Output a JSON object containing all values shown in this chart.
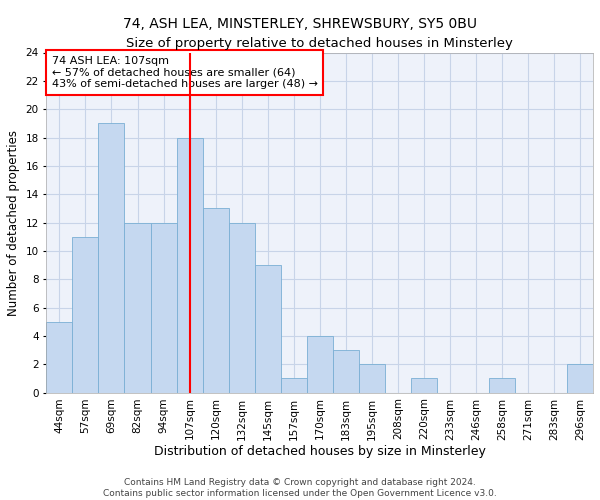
{
  "title1": "74, ASH LEA, MINSTERLEY, SHREWSBURY, SY5 0BU",
  "title2": "Size of property relative to detached houses in Minsterley",
  "xlabel": "Distribution of detached houses by size in Minsterley",
  "ylabel": "Number of detached properties",
  "categories": [
    "44sqm",
    "57sqm",
    "69sqm",
    "82sqm",
    "94sqm",
    "107sqm",
    "120sqm",
    "132sqm",
    "145sqm",
    "157sqm",
    "170sqm",
    "183sqm",
    "195sqm",
    "208sqm",
    "220sqm",
    "233sqm",
    "246sqm",
    "258sqm",
    "271sqm",
    "283sqm",
    "296sqm"
  ],
  "values": [
    5,
    11,
    19,
    12,
    12,
    18,
    13,
    12,
    9,
    1,
    4,
    3,
    2,
    0,
    1,
    0,
    0,
    1,
    0,
    0,
    2
  ],
  "bar_color": "#c5d8f0",
  "bar_edge_color": "#7aafd4",
  "vline_x_index": 5,
  "vline_color": "red",
  "annotation_text": "74 ASH LEA: 107sqm\n← 57% of detached houses are smaller (64)\n43% of semi-detached houses are larger (48) →",
  "annotation_box_color": "white",
  "annotation_box_edge_color": "red",
  "ylim": [
    0,
    24
  ],
  "yticks": [
    0,
    2,
    4,
    6,
    8,
    10,
    12,
    14,
    16,
    18,
    20,
    22,
    24
  ],
  "footer1": "Contains HM Land Registry data © Crown copyright and database right 2024.",
  "footer2": "Contains public sector information licensed under the Open Government Licence v3.0.",
  "title1_fontsize": 10,
  "title2_fontsize": 9.5,
  "xlabel_fontsize": 9,
  "ylabel_fontsize": 8.5,
  "tick_fontsize": 7.5,
  "footer_fontsize": 6.5,
  "annotation_fontsize": 8,
  "grid_color": "#c8d4e8",
  "background_color": "#eef2fa"
}
